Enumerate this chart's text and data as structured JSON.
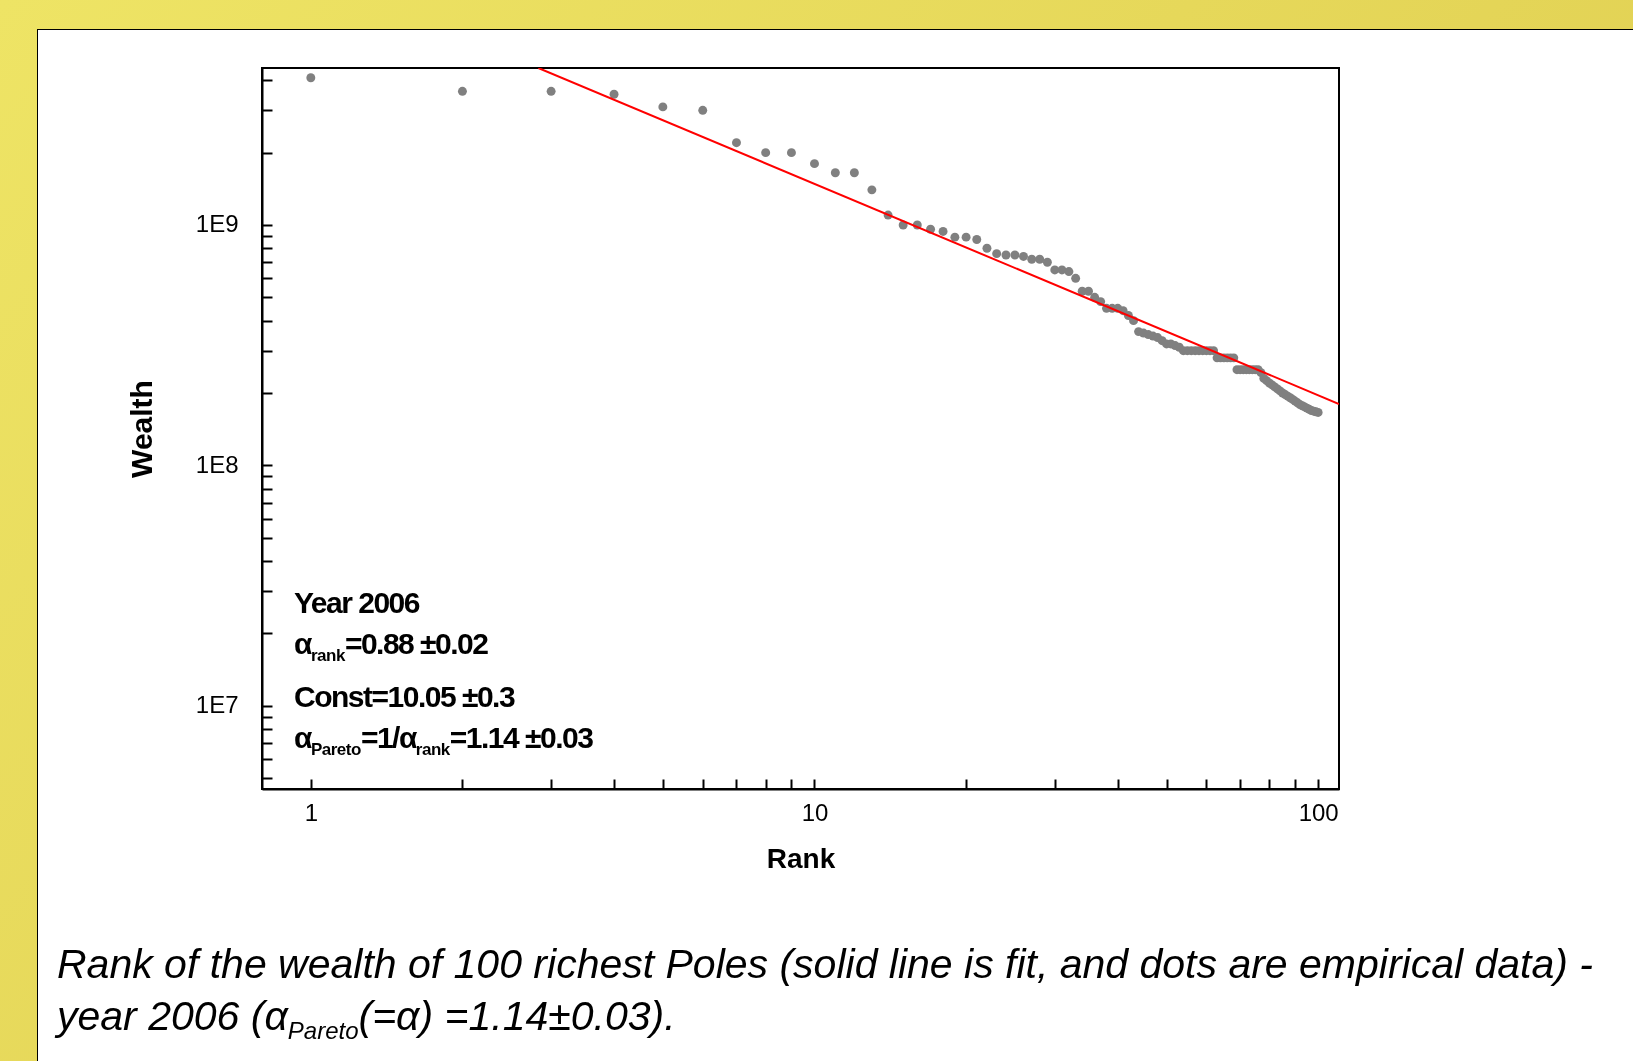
{
  "chart_data": {
    "type": "scatter",
    "xlabel": "Rank",
    "ylabel": "Wealth",
    "log": "xy",
    "grid": false,
    "xlim": [
      0.8,
      110
    ],
    "ylim": [
      4500000,
      4500000000
    ],
    "xticks": [
      1,
      {
        "value": 2,
        "label": null
      },
      {
        "value": 3,
        "label": null
      },
      {
        "value": 4,
        "label": null
      },
      {
        "value": 5,
        "label": null
      },
      {
        "value": 6,
        "label": null
      },
      {
        "value": 7,
        "label": null
      },
      {
        "value": 8,
        "label": null
      },
      {
        "value": 9,
        "label": null
      },
      10,
      {
        "value": 20,
        "label": null
      },
      {
        "value": 30,
        "label": null
      },
      {
        "value": 40,
        "label": null
      },
      {
        "value": 50,
        "label": null
      },
      {
        "value": 60,
        "label": null
      },
      {
        "value": 70,
        "label": null
      },
      {
        "value": 80,
        "label": null
      },
      {
        "value": 90,
        "label": null
      },
      100
    ],
    "yticks": [
      {
        "value": 5000000,
        "label": null
      },
      {
        "value": 6000000,
        "label": null
      },
      {
        "value": 7000000,
        "label": null
      },
      {
        "value": 8000000,
        "label": null
      },
      {
        "value": 9000000,
        "label": null
      },
      {
        "value": 10000000,
        "label": "1E7"
      },
      {
        "value": 20000000,
        "label": null
      },
      {
        "value": 30000000,
        "label": null
      },
      {
        "value": 40000000,
        "label": null
      },
      {
        "value": 50000000,
        "label": null
      },
      {
        "value": 60000000,
        "label": null
      },
      {
        "value": 70000000,
        "label": null
      },
      {
        "value": 80000000,
        "label": null
      },
      {
        "value": 90000000,
        "label": null
      },
      {
        "value": 100000000,
        "label": "1E8"
      },
      {
        "value": 200000000,
        "label": null
      },
      {
        "value": 300000000,
        "label": null
      },
      {
        "value": 400000000,
        "label": null
      },
      {
        "value": 500000000,
        "label": null
      },
      {
        "value": 600000000,
        "label": null
      },
      {
        "value": 700000000,
        "label": null
      },
      {
        "value": 800000000,
        "label": null
      },
      {
        "value": 900000000,
        "label": null
      },
      {
        "value": 1000000000,
        "label": "1E9"
      },
      {
        "value": 2000000000,
        "label": null
      },
      {
        "value": 3000000000,
        "label": null
      },
      {
        "value": 4000000000,
        "label": null
      }
    ],
    "series": [
      {
        "type": "scatter",
        "marker": "circle",
        "color": "#808080",
        "x": [
          1,
          2,
          3,
          4,
          5,
          6,
          7,
          8,
          9,
          10,
          11,
          12,
          13,
          14,
          15,
          16,
          17,
          18,
          19,
          20,
          21,
          22,
          23,
          24,
          25,
          26,
          27,
          28,
          29,
          30,
          31,
          32,
          33,
          34,
          35,
          36,
          37,
          38,
          39,
          40,
          41,
          42,
          43,
          44,
          45,
          46,
          47,
          48,
          49,
          50,
          51,
          52,
          53,
          54,
          55,
          56,
          57,
          58,
          59,
          60,
          61,
          62,
          63,
          64,
          65,
          66,
          67,
          68,
          69,
          70,
          71,
          72,
          73,
          74,
          75,
          76,
          77,
          78,
          79,
          80,
          81,
          82,
          83,
          84,
          85,
          86,
          87,
          88,
          89,
          90,
          91,
          92,
          93,
          94,
          95,
          96,
          97,
          98,
          99,
          100
        ],
        "values": [
          4100000000,
          3600000000,
          3600000000,
          3500000000,
          3100000000,
          3000000000,
          2200000000,
          2000000000,
          2000000000,
          1800000000,
          1650000000,
          1650000000,
          1400000000,
          1100000000,
          1000000000,
          1000000000,
          960000000,
          940000000,
          890000000,
          890000000,
          870000000,
          800000000,
          760000000,
          750000000,
          750000000,
          740000000,
          720000000,
          720000000,
          700000000,
          650000000,
          650000000,
          640000000,
          600000000,
          530000000,
          530000000,
          500000000,
          480000000,
          450000000,
          450000000,
          450000000,
          440000000,
          420000000,
          400000000,
          360000000,
          355000000,
          350000000,
          345000000,
          340000000,
          330000000,
          320000000,
          320000000,
          315000000,
          310000000,
          300000000,
          300000000,
          300000000,
          300000000,
          300000000,
          300000000,
          300000000,
          300000000,
          300000000,
          280000000,
          280000000,
          280000000,
          280000000,
          280000000,
          280000000,
          250000000,
          250000000,
          250000000,
          250000000,
          250000000,
          250000000,
          250000000,
          250000000,
          243000000,
          230000000,
          225000000,
          220000000,
          216000000,
          212000000,
          208000000,
          204000000,
          200000000,
          197000000,
          194000000,
          191000000,
          188000000,
          185000000,
          182000000,
          179000000,
          177000000,
          175000000,
          173000000,
          171000000,
          169000000,
          168000000,
          167000000,
          166000000
        ]
      },
      {
        "type": "line",
        "color": "#ff0000",
        "x": [
          2.83,
          110
        ],
        "values": [
          4500000000,
          180000000
        ]
      }
    ],
    "annotations": [
      "Year 2006",
      "α$_{rank}$=0.88 ±0.02",
      "Const=10.05 ±0.3",
      "α$_{Pareto}$=1/α$_{rank}$=1.14 ±0.03",
      "Rank of the wealth of 100 richest Poles (solid line is fit, and dots are empirical data) - year 2006 (α$_{Pareto}$(=α) =1.14±0.03)."
    ]
  }
}
